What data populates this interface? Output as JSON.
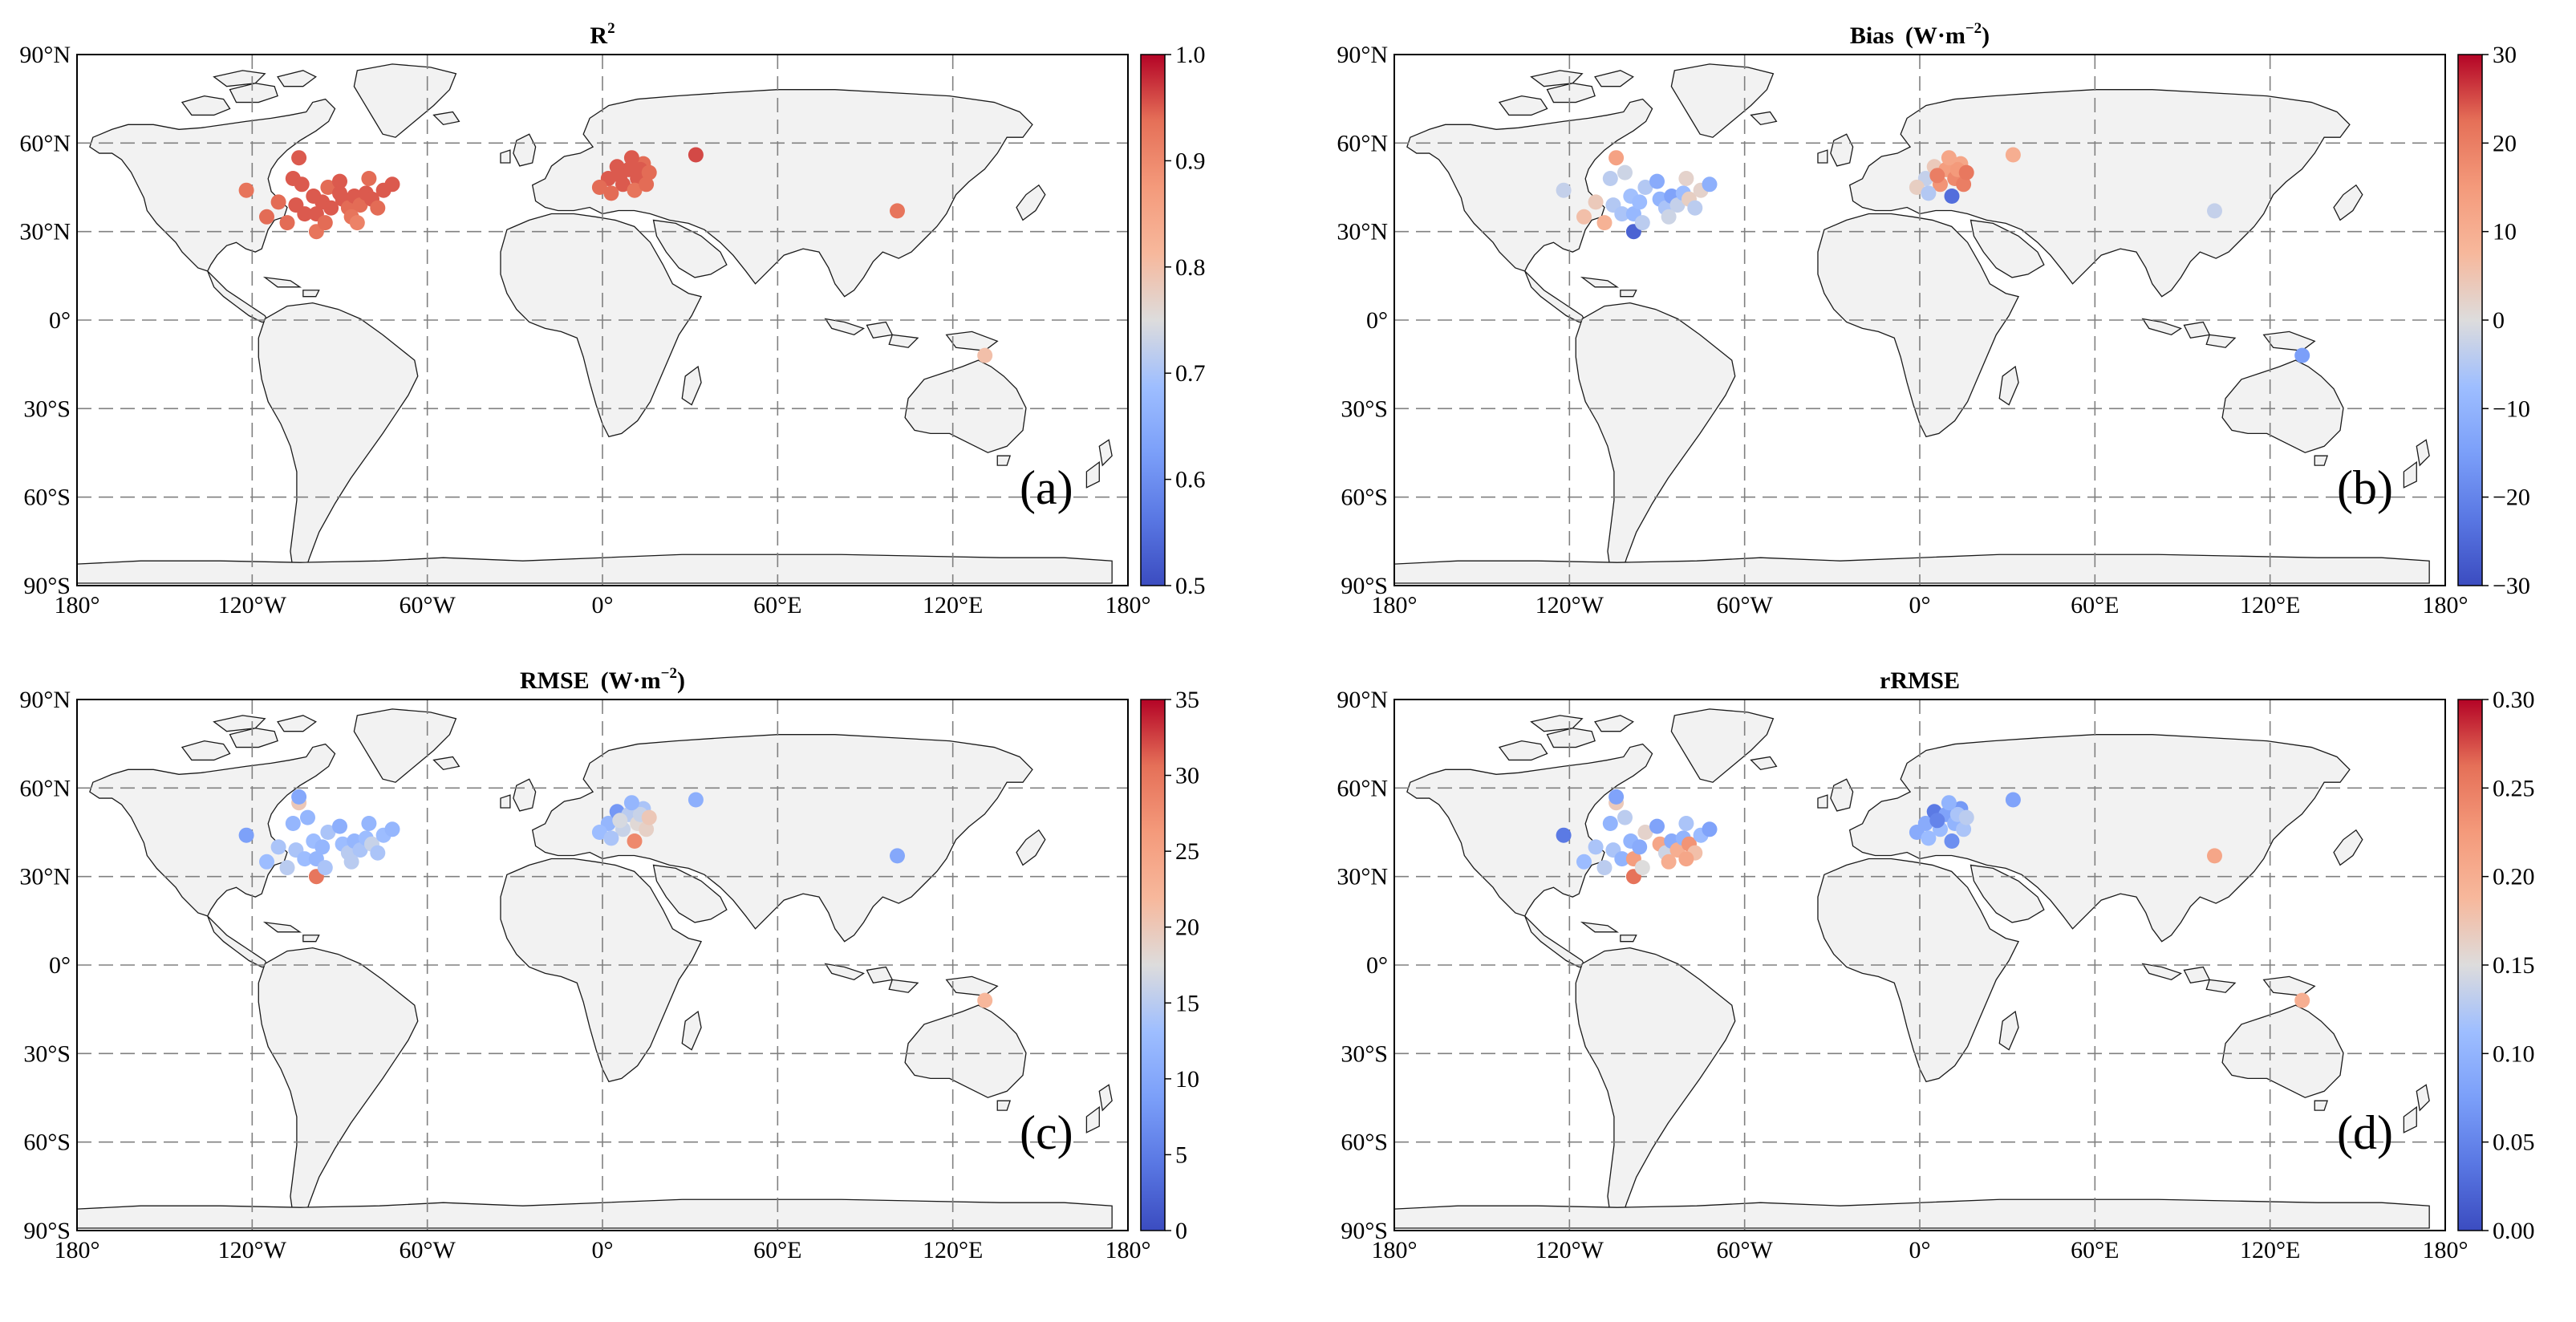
{
  "figure": {
    "tick_labels": {
      "lat": [
        "90°N",
        "60°N",
        "30°N",
        "0°",
        "30°S",
        "60°S",
        "90°S"
      ],
      "lon": [
        "180°",
        "120°W",
        "60°W",
        "0°",
        "60°E",
        "120°E",
        "180°"
      ]
    },
    "land_color": "#f2f2f2",
    "panels": [
      {
        "id": "a",
        "title": "R",
        "title_sup": "2",
        "panel_label": "(a)",
        "colormap": "coolwarm",
        "range": [
          0.5,
          1.0
        ],
        "colorbar_ticks": [
          "1.0",
          "0.9",
          "0.8",
          "0.7",
          "0.6",
          "0.5"
        ],
        "sites": [
          {
            "lon": -122,
            "lat": 44,
            "v": 0.93
          },
          {
            "lon": -104,
            "lat": 55,
            "v": 0.95
          },
          {
            "lon": -106,
            "lat": 48,
            "v": 0.95
          },
          {
            "lon": -111,
            "lat": 40,
            "v": 0.94
          },
          {
            "lon": -115,
            "lat": 35,
            "v": 0.94
          },
          {
            "lon": -108,
            "lat": 33,
            "v": 0.94
          },
          {
            "lon": -105,
            "lat": 39,
            "v": 0.95
          },
          {
            "lon": -102,
            "lat": 36,
            "v": 0.95
          },
          {
            "lon": -98,
            "lat": 36,
            "v": 0.95
          },
          {
            "lon": -99,
            "lat": 42,
            "v": 0.95
          },
          {
            "lon": -96,
            "lat": 40,
            "v": 0.95
          },
          {
            "lon": -94,
            "lat": 45,
            "v": 0.94
          },
          {
            "lon": -90,
            "lat": 47,
            "v": 0.95
          },
          {
            "lon": -89,
            "lat": 41,
            "v": 0.95
          },
          {
            "lon": -87,
            "lat": 38,
            "v": 0.94
          },
          {
            "lon": -85,
            "lat": 42,
            "v": 0.95
          },
          {
            "lon": -83,
            "lat": 39,
            "v": 0.94
          },
          {
            "lon": -81,
            "lat": 43,
            "v": 0.95
          },
          {
            "lon": -79,
            "lat": 41,
            "v": 0.95
          },
          {
            "lon": -77,
            "lat": 38,
            "v": 0.94
          },
          {
            "lon": -75,
            "lat": 44,
            "v": 0.95
          },
          {
            "lon": -72,
            "lat": 46,
            "v": 0.95
          },
          {
            "lon": -80,
            "lat": 48,
            "v": 0.94
          },
          {
            "lon": -86,
            "lat": 35,
            "v": 0.93
          },
          {
            "lon": -98,
            "lat": 30,
            "v": 0.93
          },
          {
            "lon": -95,
            "lat": 33,
            "v": 0.94
          },
          {
            "lon": -84,
            "lat": 33,
            "v": 0.91
          },
          {
            "lon": -93,
            "lat": 38,
            "v": 0.95
          },
          {
            "lon": -103,
            "lat": 46,
            "v": 0.95
          },
          {
            "lon": -90,
            "lat": 43,
            "v": 0.95
          },
          {
            "lon": 2,
            "lat": 48,
            "v": 0.95
          },
          {
            "lon": 5,
            "lat": 52,
            "v": 0.95
          },
          {
            "lon": 9,
            "lat": 51,
            "v": 0.95
          },
          {
            "lon": 12,
            "lat": 48,
            "v": 0.95
          },
          {
            "lon": 14,
            "lat": 53,
            "v": 0.94
          },
          {
            "lon": 7,
            "lat": 46,
            "v": 0.95
          },
          {
            "lon": 11,
            "lat": 44,
            "v": 0.93
          },
          {
            "lon": 15,
            "lat": 46,
            "v": 0.94
          },
          {
            "lon": -1,
            "lat": 45,
            "v": 0.94
          },
          {
            "lon": 3,
            "lat": 43,
            "v": 0.94
          },
          {
            "lon": 6,
            "lat": 49,
            "v": 0.95
          },
          {
            "lon": 13,
            "lat": 51,
            "v": 0.95
          },
          {
            "lon": 10,
            "lat": 55,
            "v": 0.95
          },
          {
            "lon": 16,
            "lat": 50,
            "v": 0.94
          },
          {
            "lon": 32,
            "lat": 56,
            "v": 0.96
          },
          {
            "lon": 101,
            "lat": 37,
            "v": 0.93
          },
          {
            "lon": 131,
            "lat": -12,
            "v": 0.8
          }
        ]
      },
      {
        "id": "b",
        "title": "Bias",
        "title_units": "(W·m",
        "title_units_sup": "−2",
        "title_units_close": ")",
        "panel_label": "(b)",
        "colormap": "coolwarm",
        "range": [
          -30,
          30
        ],
        "colorbar_ticks": [
          "30",
          "20",
          "10",
          "0",
          "−10",
          "−20",
          "−30"
        ],
        "sites": [
          {
            "lon": -122,
            "lat": 44,
            "v": -3
          },
          {
            "lon": -104,
            "lat": 55,
            "v": 13
          },
          {
            "lon": -106,
            "lat": 48,
            "v": -4
          },
          {
            "lon": -111,
            "lat": 40,
            "v": 4
          },
          {
            "lon": -115,
            "lat": 35,
            "v": 6
          },
          {
            "lon": -108,
            "lat": 33,
            "v": 9
          },
          {
            "lon": -105,
            "lat": 39,
            "v": -5
          },
          {
            "lon": -102,
            "lat": 36,
            "v": -6
          },
          {
            "lon": -98,
            "lat": 36,
            "v": -9
          },
          {
            "lon": -99,
            "lat": 42,
            "v": -7
          },
          {
            "lon": -96,
            "lat": 40,
            "v": -8
          },
          {
            "lon": -94,
            "lat": 45,
            "v": -5
          },
          {
            "lon": -90,
            "lat": 47,
            "v": -12
          },
          {
            "lon": -89,
            "lat": 41,
            "v": -10
          },
          {
            "lon": -87,
            "lat": 38,
            "v": -6
          },
          {
            "lon": -85,
            "lat": 42,
            "v": -14
          },
          {
            "lon": -83,
            "lat": 39,
            "v": -3
          },
          {
            "lon": -81,
            "lat": 43,
            "v": -8
          },
          {
            "lon": -79,
            "lat": 41,
            "v": 3
          },
          {
            "lon": -77,
            "lat": 38,
            "v": -4
          },
          {
            "lon": -75,
            "lat": 44,
            "v": 2
          },
          {
            "lon": -72,
            "lat": 46,
            "v": -11
          },
          {
            "lon": -80,
            "lat": 48,
            "v": 2
          },
          {
            "lon": -86,
            "lat": 35,
            "v": -2
          },
          {
            "lon": -98,
            "lat": 30,
            "v": -26
          },
          {
            "lon": -95,
            "lat": 33,
            "v": -4
          },
          {
            "lon": -101,
            "lat": 50,
            "v": -2
          },
          {
            "lon": 2,
            "lat": 48,
            "v": -3
          },
          {
            "lon": 5,
            "lat": 52,
            "v": 4
          },
          {
            "lon": 9,
            "lat": 51,
            "v": 14
          },
          {
            "lon": 12,
            "lat": 48,
            "v": 18
          },
          {
            "lon": 14,
            "lat": 53,
            "v": 12
          },
          {
            "lon": 7,
            "lat": 46,
            "v": 16
          },
          {
            "lon": 11,
            "lat": 42,
            "v": -24
          },
          {
            "lon": 15,
            "lat": 46,
            "v": 20
          },
          {
            "lon": -1,
            "lat": 45,
            "v": 3
          },
          {
            "lon": 3,
            "lat": 43,
            "v": -5
          },
          {
            "lon": 6,
            "lat": 49,
            "v": 20
          },
          {
            "lon": 13,
            "lat": 51,
            "v": 15
          },
          {
            "lon": 10,
            "lat": 55,
            "v": 12
          },
          {
            "lon": 16,
            "lat": 50,
            "v": 21
          },
          {
            "lon": 32,
            "lat": 56,
            "v": 10
          },
          {
            "lon": 101,
            "lat": 37,
            "v": -3
          },
          {
            "lon": 131,
            "lat": -12,
            "v": -15
          }
        ]
      },
      {
        "id": "c",
        "title": "RMSE",
        "title_units": "(W·m",
        "title_units_sup": "−2",
        "title_units_close": ")",
        "panel_label": "(c)",
        "colormap": "coolwarm",
        "range": [
          0,
          35
        ],
        "colorbar_ticks": [
          "35",
          "30",
          "25",
          "20",
          "15",
          "10",
          "5",
          "0"
        ],
        "sites": [
          {
            "lon": -122,
            "lat": 44,
            "v": 9
          },
          {
            "lon": -104,
            "lat": 55,
            "v": 20
          },
          {
            "lon": -106,
            "lat": 48,
            "v": 12
          },
          {
            "lon": -111,
            "lat": 40,
            "v": 14
          },
          {
            "lon": -115,
            "lat": 35,
            "v": 13
          },
          {
            "lon": -108,
            "lat": 33,
            "v": 15
          },
          {
            "lon": -105,
            "lat": 39,
            "v": 14
          },
          {
            "lon": -102,
            "lat": 36,
            "v": 13
          },
          {
            "lon": -98,
            "lat": 36,
            "v": 12
          },
          {
            "lon": -99,
            "lat": 42,
            "v": 13
          },
          {
            "lon": -96,
            "lat": 40,
            "v": 12
          },
          {
            "lon": -94,
            "lat": 45,
            "v": 14
          },
          {
            "lon": -90,
            "lat": 47,
            "v": 11
          },
          {
            "lon": -89,
            "lat": 41,
            "v": 13
          },
          {
            "lon": -87,
            "lat": 38,
            "v": 15
          },
          {
            "lon": -85,
            "lat": 42,
            "v": 12
          },
          {
            "lon": -83,
            "lat": 39,
            "v": 14
          },
          {
            "lon": -81,
            "lat": 43,
            "v": 13
          },
          {
            "lon": -79,
            "lat": 41,
            "v": 16
          },
          {
            "lon": -77,
            "lat": 38,
            "v": 14
          },
          {
            "lon": -75,
            "lat": 44,
            "v": 13
          },
          {
            "lon": -72,
            "lat": 46,
            "v": 12
          },
          {
            "lon": -80,
            "lat": 48,
            "v": 12
          },
          {
            "lon": -86,
            "lat": 35,
            "v": 15
          },
          {
            "lon": -98,
            "lat": 30,
            "v": 30
          },
          {
            "lon": -95,
            "lat": 33,
            "v": 14
          },
          {
            "lon": -101,
            "lat": 50,
            "v": 12
          },
          {
            "lon": -104,
            "lat": 57,
            "v": 10
          },
          {
            "lon": 2,
            "lat": 48,
            "v": 12
          },
          {
            "lon": 5,
            "lat": 52,
            "v": 8
          },
          {
            "lon": 9,
            "lat": 51,
            "v": 15
          },
          {
            "lon": 12,
            "lat": 48,
            "v": 18
          },
          {
            "lon": 14,
            "lat": 53,
            "v": 14
          },
          {
            "lon": 7,
            "lat": 46,
            "v": 16
          },
          {
            "lon": 11,
            "lat": 42,
            "v": 28
          },
          {
            "lon": 15,
            "lat": 46,
            "v": 19
          },
          {
            "lon": -1,
            "lat": 45,
            "v": 13
          },
          {
            "lon": 3,
            "lat": 43,
            "v": 14
          },
          {
            "lon": 6,
            "lat": 49,
            "v": 17
          },
          {
            "lon": 13,
            "lat": 51,
            "v": 16
          },
          {
            "lon": 10,
            "lat": 55,
            "v": 12
          },
          {
            "lon": 16,
            "lat": 50,
            "v": 20
          },
          {
            "lon": 32,
            "lat": 56,
            "v": 11
          },
          {
            "lon": 101,
            "lat": 37,
            "v": 10
          },
          {
            "lon": 131,
            "lat": -12,
            "v": 22
          }
        ]
      },
      {
        "id": "d",
        "title": "rRMSE",
        "panel_label": "(d)",
        "colormap": "coolwarm",
        "range": [
          0,
          0.3
        ],
        "colorbar_ticks": [
          "0.30",
          "0.25",
          "0.20",
          "0.15",
          "0.10",
          "0.05",
          "0.00"
        ],
        "sites": [
          {
            "lon": -122,
            "lat": 44,
            "v": 0.04
          },
          {
            "lon": -104,
            "lat": 55,
            "v": 0.17
          },
          {
            "lon": -106,
            "lat": 48,
            "v": 0.1
          },
          {
            "lon": -111,
            "lat": 40,
            "v": 0.12
          },
          {
            "lon": -115,
            "lat": 35,
            "v": 0.11
          },
          {
            "lon": -108,
            "lat": 33,
            "v": 0.13
          },
          {
            "lon": -105,
            "lat": 39,
            "v": 0.12
          },
          {
            "lon": -102,
            "lat": 36,
            "v": 0.1
          },
          {
            "lon": -98,
            "lat": 36,
            "v": 0.22
          },
          {
            "lon": -99,
            "lat": 42,
            "v": 0.1
          },
          {
            "lon": -96,
            "lat": 40,
            "v": 0.09
          },
          {
            "lon": -94,
            "lat": 45,
            "v": 0.16
          },
          {
            "lon": -90,
            "lat": 47,
            "v": 0.08
          },
          {
            "lon": -89,
            "lat": 41,
            "v": 0.21
          },
          {
            "lon": -87,
            "lat": 38,
            "v": 0.14
          },
          {
            "lon": -85,
            "lat": 42,
            "v": 0.09
          },
          {
            "lon": -83,
            "lat": 39,
            "v": 0.2
          },
          {
            "lon": -81,
            "lat": 43,
            "v": 0.1
          },
          {
            "lon": -79,
            "lat": 41,
            "v": 0.23
          },
          {
            "lon": -77,
            "lat": 38,
            "v": 0.18
          },
          {
            "lon": -75,
            "lat": 44,
            "v": 0.11
          },
          {
            "lon": -72,
            "lat": 46,
            "v": 0.08
          },
          {
            "lon": -80,
            "lat": 48,
            "v": 0.12
          },
          {
            "lon": -86,
            "lat": 35,
            "v": 0.2
          },
          {
            "lon": -98,
            "lat": 30,
            "v": 0.26
          },
          {
            "lon": -95,
            "lat": 33,
            "v": 0.15
          },
          {
            "lon": -101,
            "lat": 50,
            "v": 0.13
          },
          {
            "lon": -104,
            "lat": 57,
            "v": 0.08
          },
          {
            "lon": -80,
            "lat": 36,
            "v": 0.21
          },
          {
            "lon": 2,
            "lat": 48,
            "v": 0.09
          },
          {
            "lon": 5,
            "lat": 52,
            "v": 0.04
          },
          {
            "lon": 9,
            "lat": 51,
            "v": 0.08
          },
          {
            "lon": 12,
            "lat": 48,
            "v": 0.1
          },
          {
            "lon": 14,
            "lat": 53,
            "v": 0.07
          },
          {
            "lon": 7,
            "lat": 46,
            "v": 0.11
          },
          {
            "lon": 11,
            "lat": 42,
            "v": 0.06
          },
          {
            "lon": 15,
            "lat": 46,
            "v": 0.12
          },
          {
            "lon": -1,
            "lat": 45,
            "v": 0.09
          },
          {
            "lon": 3,
            "lat": 43,
            "v": 0.11
          },
          {
            "lon": 6,
            "lat": 49,
            "v": 0.05
          },
          {
            "lon": 13,
            "lat": 51,
            "v": 0.12
          },
          {
            "lon": 10,
            "lat": 55,
            "v": 0.1
          },
          {
            "lon": 16,
            "lat": 50,
            "v": 0.13
          },
          {
            "lon": 32,
            "lat": 56,
            "v": 0.08
          },
          {
            "lon": 101,
            "lat": 37,
            "v": 0.21
          },
          {
            "lon": 131,
            "lat": -12,
            "v": 0.2
          }
        ]
      }
    ]
  }
}
